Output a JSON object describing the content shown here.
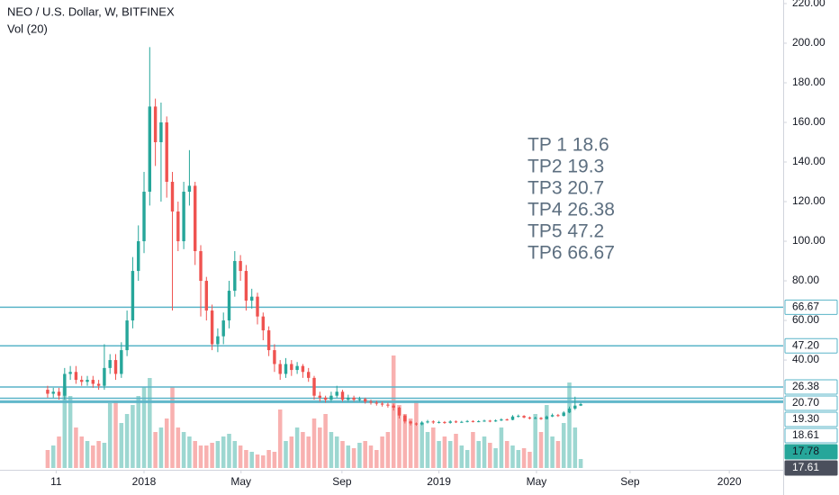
{
  "chart_data": {
    "type": "candlestick",
    "title": "NEO / U.S. Dollar, W, BITFINEX",
    "subtitle": "Vol (20)",
    "up_color": "#26a69a",
    "down_color": "#ef5350",
    "grid": false,
    "xlim": [
      -25.4,
      112.7
    ],
    "xticks": [
      {
        "value": -15.5,
        "label": "11"
      },
      {
        "value": 0,
        "label": "2018"
      },
      {
        "value": 17.1,
        "label": "May"
      },
      {
        "value": 34.9,
        "label": "Sep"
      },
      {
        "value": 52,
        "label": "2019"
      },
      {
        "value": 69.2,
        "label": "May"
      },
      {
        "value": 85.7,
        "label": "Sep"
      },
      {
        "value": 103.2,
        "label": "2020"
      }
    ],
    "ylim": [
      -14.5,
      221.8
    ],
    "yticks": [
      {
        "value": 40,
        "label": "40.00"
      },
      {
        "value": 60,
        "label": "60.00"
      },
      {
        "value": 80,
        "label": "80.00"
      },
      {
        "value": 100,
        "label": "100.00"
      },
      {
        "value": 120,
        "label": "120.00"
      },
      {
        "value": 140,
        "label": "140.00"
      },
      {
        "value": 160,
        "label": "160.00"
      },
      {
        "value": 180,
        "label": "180.00"
      },
      {
        "value": 200,
        "label": "200.00"
      },
      {
        "value": 220,
        "label": "220.00"
      }
    ],
    "volume_ylim": [
      0,
      520
    ],
    "x": [
      -17,
      -16,
      -15,
      -14,
      -13,
      -12,
      -11,
      -10,
      -9,
      -8,
      -7,
      -6,
      -5,
      -4,
      -3,
      -2,
      -1,
      0,
      1,
      2,
      3,
      4,
      5,
      6,
      7,
      8,
      9,
      10,
      11,
      12,
      13,
      14,
      15,
      16,
      17,
      18,
      19,
      20,
      21,
      22,
      23,
      24,
      25,
      26,
      27,
      28,
      29,
      30,
      31,
      32,
      33,
      34,
      35,
      36,
      37,
      38,
      39,
      40,
      41,
      42,
      43,
      44,
      45,
      46,
      47,
      48,
      49,
      50,
      51,
      52,
      53,
      54,
      55,
      56,
      57,
      58,
      59,
      60,
      61,
      62,
      63,
      64,
      65,
      66,
      67,
      68,
      69,
      70,
      71,
      72,
      73,
      74,
      75,
      76,
      77
    ],
    "open": [
      25,
      23,
      24,
      22,
      33,
      34,
      30,
      29,
      30,
      28,
      27,
      36,
      40,
      33,
      45,
      60,
      85,
      100,
      125,
      168,
      150,
      160,
      130,
      115,
      100,
      125,
      128,
      95,
      80,
      65,
      48,
      52,
      60,
      75,
      90,
      85,
      70,
      72,
      62,
      55,
      45,
      38,
      33,
      38,
      35,
      37,
      34,
      31,
      22,
      21,
      20,
      22,
      24,
      20,
      21,
      20,
      20.3,
      19,
      18.5,
      18,
      17.5,
      17,
      16,
      12,
      9,
      8,
      7.5,
      8.5,
      9,
      8.5,
      8.7,
      8.3,
      9,
      8.6,
      8.8,
      9.2,
      8.9,
      9.1,
      9.4,
      9,
      9.5,
      10,
      9.8,
      11.5,
      11.8,
      11,
      10.5,
      10.8,
      10.2,
      11.5,
      12.2,
      11.8,
      13.5,
      15.5,
      17
    ],
    "high": [
      27,
      26,
      26,
      36,
      37,
      37,
      32,
      32,
      32,
      30,
      48,
      43,
      43,
      49,
      65,
      92,
      108,
      135,
      198,
      172,
      170,
      163,
      135,
      120,
      130,
      146,
      130,
      98,
      82,
      68,
      56,
      64,
      80,
      95,
      93,
      88,
      76,
      74,
      64,
      57,
      48,
      40,
      41,
      40,
      39,
      38,
      36,
      32,
      24,
      22,
      24,
      27,
      25,
      22.5,
      22,
      21.5,
      21,
      20,
      19.5,
      19,
      18.5,
      18,
      16.5,
      12.5,
      9.5,
      8.5,
      9.2,
      9.8,
      9.6,
      9.3,
      9.2,
      9.6,
      9.5,
      9.3,
      9.7,
      9.6,
      9.6,
      9.9,
      9.8,
      10,
      10.6,
      10.5,
      12.2,
      12.5,
      12.2,
      11.5,
      11.4,
      11.2,
      12,
      13,
      12.8,
      14.2,
      16.5,
      21.5,
      18.5
    ],
    "low": [
      21,
      21,
      20,
      20,
      30,
      28,
      27,
      27,
      26,
      25,
      25,
      33,
      30,
      31,
      42,
      56,
      80,
      94,
      118,
      138,
      120,
      122,
      65,
      95,
      96,
      118,
      88,
      62,
      60,
      45,
      44,
      48,
      56,
      72,
      80,
      65,
      66,
      58,
      50,
      42,
      34,
      30,
      31,
      32,
      33,
      31,
      29,
      20,
      19,
      18.5,
      19,
      21,
      19,
      19,
      19,
      19,
      18,
      17.5,
      17,
      16.5,
      16,
      14.5,
      10.5,
      8,
      7,
      6.8,
      7,
      8,
      7.8,
      8,
      7.8,
      7.9,
      8.2,
      8.3,
      8.5,
      8.5,
      8.6,
      8.8,
      8.6,
      8.8,
      9.2,
      9.4,
      9.6,
      11,
      10.6,
      10,
      10.2,
      9.8,
      10,
      11.2,
      11.3,
      11.5,
      13.2,
      14.8,
      16.8
    ],
    "close": [
      23,
      24,
      22,
      33,
      34,
      30,
      29,
      30,
      28,
      27,
      36,
      40,
      33,
      45,
      60,
      85,
      100,
      125,
      168,
      150,
      160,
      130,
      115,
      100,
      125,
      128,
      95,
      80,
      65,
      48,
      52,
      60,
      75,
      90,
      85,
      70,
      72,
      62,
      55,
      45,
      38,
      33,
      38,
      35,
      37,
      34,
      31,
      22,
      21,
      20,
      22,
      24,
      20,
      21,
      20,
      20.3,
      19,
      18.5,
      18,
      17.5,
      17,
      16,
      12,
      9,
      8,
      7.5,
      8.5,
      9,
      8.5,
      8.7,
      8.3,
      9,
      8.6,
      8.8,
      9.2,
      8.9,
      9.1,
      9.4,
      9,
      9.5,
      10,
      9.8,
      11.5,
      11.8,
      11,
      10.5,
      10.8,
      10.2,
      11.5,
      12.2,
      11.8,
      13.5,
      15.5,
      17,
      17.78
    ],
    "volume": [
      20,
      25,
      35,
      90,
      80,
      45,
      35,
      30,
      25,
      30,
      28,
      72,
      75,
      50,
      60,
      70,
      80,
      90,
      100,
      40,
      45,
      55,
      90,
      45,
      40,
      35,
      30,
      25,
      25,
      28,
      30,
      35,
      38,
      30,
      25,
      20,
      18,
      15,
      14,
      20,
      18,
      65,
      30,
      35,
      45,
      40,
      35,
      55,
      45,
      60,
      40,
      35,
      30,
      25,
      22,
      28,
      30,
      25,
      20,
      35,
      40,
      125,
      70,
      60,
      55,
      75,
      50,
      40,
      45,
      30,
      35,
      30,
      38,
      25,
      20,
      40,
      30,
      35,
      28,
      22,
      45,
      30,
      25,
      20,
      22,
      18,
      60,
      40,
      70,
      35,
      30,
      50,
      95,
      45,
      10
    ],
    "price_lines": {
      "color": "#5ab4c8",
      "levels": [
        {
          "value": 66.67,
          "label": "66.67"
        },
        {
          "value": 47.2,
          "label": "47.20"
        },
        {
          "value": 26.38,
          "label": "26.38"
        },
        {
          "value": 20.7,
          "label": "20.70"
        },
        {
          "value": 19.3,
          "label": "19.30"
        },
        {
          "value": 18.61,
          "label": "18.61"
        }
      ]
    },
    "last_price": {
      "value": 17.78,
      "label": "17.78"
    },
    "volume_label": {
      "value": 17.61,
      "label": "17.61"
    },
    "annotation": [
      "TP 1 18.6",
      "TP2 19.3",
      "TP3 20.7",
      "TP4 26.38",
      "TP5 47.2",
      "TP6 66.67"
    ]
  }
}
